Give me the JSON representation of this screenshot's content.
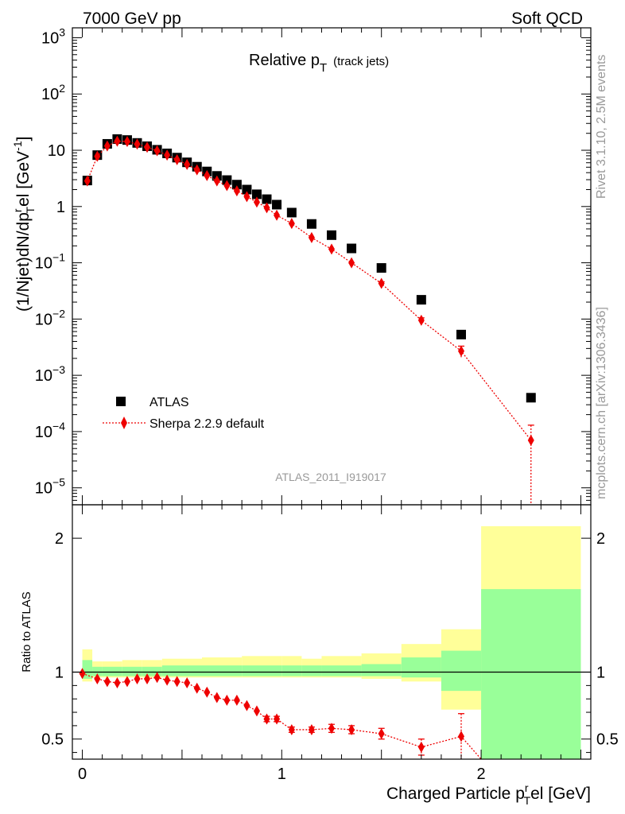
{
  "header": {
    "left": "7000 GeV pp",
    "right": "Soft QCD"
  },
  "side_labels": {
    "rivet": "Rivet 3.1.10,  2.5M events",
    "mcplots": "mcplots.cern.ch [arXiv:1306.3436]"
  },
  "chart_data": [
    {
      "type": "scatter",
      "panel": "main",
      "title_main": "Relative p",
      "title_sub": "T",
      "title_extra": "(track jets)",
      "ylabel": "(1/Njet)dN/dp",
      "ylabel_sup": "r",
      "ylabel_sub": "T",
      "ylabel_tail": "el [GeV",
      "ylabel_unit_sup": "-1",
      "ylabel_close": "]",
      "yscale": "log",
      "ylim": [
        5e-06,
        1500
      ],
      "xlim": [
        -0.05,
        2.55
      ],
      "ytick_labels": [
        {
          "base": "10",
          "exp": "3",
          "value": 1000
        },
        {
          "base": "10",
          "exp": "2",
          "value": 100
        },
        {
          "base": "10",
          "exp": "",
          "value": 10
        },
        {
          "base": "1",
          "exp": "",
          "value": 1
        },
        {
          "base": "10",
          "exp": "−1",
          "value": 0.1
        },
        {
          "base": "10",
          "exp": "−2",
          "value": 0.01
        },
        {
          "base": "10",
          "exp": "−3",
          "value": 0.001
        },
        {
          "base": "10",
          "exp": "−4",
          "value": 0.0001
        },
        {
          "base": "10",
          "exp": "−5",
          "value": 1e-05
        }
      ],
      "watermark": "ATLAS_2011_I919017",
      "legend_position": "lower-left",
      "series": [
        {
          "name": "ATLAS",
          "marker": "square",
          "color": "#000000",
          "x": [
            0.025,
            0.075,
            0.125,
            0.175,
            0.225,
            0.275,
            0.325,
            0.375,
            0.425,
            0.475,
            0.525,
            0.575,
            0.625,
            0.675,
            0.725,
            0.775,
            0.825,
            0.875,
            0.925,
            0.975,
            1.05,
            1.15,
            1.25,
            1.35,
            1.5,
            1.7,
            1.9,
            2.25
          ],
          "y": [
            2.9,
            8.2,
            13.0,
            15.8,
            15.2,
            13.5,
            11.8,
            10.2,
            8.8,
            7.4,
            6.1,
            5.1,
            4.2,
            3.5,
            2.95,
            2.45,
            2.0,
            1.65,
            1.35,
            1.08,
            0.78,
            0.49,
            0.31,
            0.18,
            0.081,
            0.022,
            0.0053,
            0.0004
          ]
        },
        {
          "name": "Sherpa 2.2.9 default",
          "marker": "diamond",
          "line": "dotted",
          "color": "#ee0000",
          "x": [
            0.025,
            0.075,
            0.125,
            0.175,
            0.225,
            0.275,
            0.325,
            0.375,
            0.425,
            0.475,
            0.525,
            0.575,
            0.625,
            0.675,
            0.725,
            0.775,
            0.825,
            0.875,
            0.925,
            0.975,
            1.05,
            1.15,
            1.25,
            1.35,
            1.5,
            1.7,
            1.9,
            2.25
          ],
          "y": [
            2.85,
            7.8,
            11.9,
            14.5,
            14.3,
            12.9,
            11.3,
            9.8,
            8.2,
            6.8,
            5.6,
            4.5,
            3.55,
            2.85,
            2.35,
            1.9,
            1.5,
            1.2,
            0.95,
            0.7,
            0.5,
            0.28,
            0.175,
            0.1,
            0.043,
            0.0095,
            0.0027,
            7e-05
          ],
          "yerr_lo": [
            0,
            0,
            0,
            0,
            0,
            0,
            0,
            0,
            0,
            0,
            0,
            0,
            0,
            0,
            0,
            0,
            0,
            0,
            0,
            0,
            0,
            0,
            0,
            0,
            0.003,
            0.001,
            0.0006,
            7e-05
          ],
          "yerr_hi": [
            0,
            0,
            0,
            0,
            0,
            0,
            0,
            0,
            0,
            0,
            0,
            0,
            0,
            0,
            0,
            0,
            0,
            0,
            0,
            0,
            0,
            0,
            0,
            0,
            0.003,
            0.001,
            0.0006,
            6e-05
          ]
        }
      ]
    },
    {
      "type": "scatter",
      "panel": "ratio",
      "ylabel": "Ratio to ATLAS",
      "xlabel_main": "Charged Particle p",
      "xlabel_sup": "r",
      "xlabel_sub": "T",
      "xlabel_tail": "el [GeV]",
      "xlim": [
        -0.05,
        2.55
      ],
      "ylim": [
        0.35,
        2.25
      ],
      "xtick_labels": [
        "0",
        "1",
        "2"
      ],
      "ytick_labels": [
        "0.5",
        "1",
        "2"
      ],
      "reference_line": 1,
      "uncertainty_bands": {
        "inner_color": "#99ff99",
        "outer_color": "#ffff99",
        "bins": [
          {
            "x0": 0.0,
            "x1": 0.05,
            "in_lo": 0.95,
            "in_hi": 1.09,
            "out_lo": 0.93,
            "out_hi": 1.17
          },
          {
            "x0": 0.05,
            "x1": 0.1,
            "in_lo": 0.97,
            "in_hi": 1.04,
            "out_lo": 0.96,
            "out_hi": 1.08
          },
          {
            "x0": 0.1,
            "x1": 0.2,
            "in_lo": 0.97,
            "in_hi": 1.04,
            "out_lo": 0.96,
            "out_hi": 1.08
          },
          {
            "x0": 0.2,
            "x1": 0.3,
            "in_lo": 0.97,
            "in_hi": 1.04,
            "out_lo": 0.96,
            "out_hi": 1.09
          },
          {
            "x0": 0.3,
            "x1": 0.4,
            "in_lo": 0.97,
            "in_hi": 1.04,
            "out_lo": 0.96,
            "out_hi": 1.09
          },
          {
            "x0": 0.4,
            "x1": 0.6,
            "in_lo": 0.97,
            "in_hi": 1.05,
            "out_lo": 0.96,
            "out_hi": 1.1
          },
          {
            "x0": 0.6,
            "x1": 0.8,
            "in_lo": 0.97,
            "in_hi": 1.05,
            "out_lo": 0.96,
            "out_hi": 1.11
          },
          {
            "x0": 0.8,
            "x1": 1.0,
            "in_lo": 0.97,
            "in_hi": 1.05,
            "out_lo": 0.96,
            "out_hi": 1.12
          },
          {
            "x0": 1.0,
            "x1": 1.1,
            "in_lo": 0.97,
            "in_hi": 1.05,
            "out_lo": 0.96,
            "out_hi": 1.12
          },
          {
            "x0": 1.1,
            "x1": 1.2,
            "in_lo": 0.97,
            "in_hi": 1.05,
            "out_lo": 0.96,
            "out_hi": 1.1
          },
          {
            "x0": 1.2,
            "x1": 1.4,
            "in_lo": 0.97,
            "in_hi": 1.05,
            "out_lo": 0.96,
            "out_hi": 1.12
          },
          {
            "x0": 1.4,
            "x1": 1.6,
            "in_lo": 0.97,
            "in_hi": 1.06,
            "out_lo": 0.95,
            "out_hi": 1.14
          },
          {
            "x0": 1.6,
            "x1": 1.8,
            "in_lo": 0.96,
            "in_hi": 1.11,
            "out_lo": 0.93,
            "out_hi": 1.21
          },
          {
            "x0": 1.8,
            "x1": 2.0,
            "in_lo": 0.86,
            "in_hi": 1.16,
            "out_lo": 0.72,
            "out_hi": 1.32
          },
          {
            "x0": 2.0,
            "x1": 2.5,
            "in_lo": 0.35,
            "in_hi": 1.62,
            "out_lo": 0.35,
            "out_hi": 2.09
          }
        ]
      },
      "series": [
        {
          "name": "Sherpa 2.2.9 default",
          "marker": "diamond",
          "color": "#ee0000",
          "x": [
            0.0,
            0.075,
            0.125,
            0.175,
            0.225,
            0.275,
            0.325,
            0.375,
            0.425,
            0.475,
            0.525,
            0.575,
            0.625,
            0.675,
            0.725,
            0.775,
            0.825,
            0.875,
            0.925,
            0.975,
            1.05,
            1.15,
            1.25,
            1.35,
            1.5,
            1.7,
            1.9
          ],
          "y": [
            0.99,
            0.95,
            0.93,
            0.92,
            0.93,
            0.95,
            0.95,
            0.96,
            0.94,
            0.93,
            0.92,
            0.88,
            0.85,
            0.81,
            0.79,
            0.79,
            0.75,
            0.71,
            0.65,
            0.65,
            0.57,
            0.57,
            0.58,
            0.57,
            0.54,
            0.44,
            0.52
          ],
          "yerr": [
            0,
            0,
            0,
            0,
            0,
            0,
            0,
            0,
            0,
            0,
            0,
            0,
            0,
            0,
            0,
            0,
            0,
            0,
            0.02,
            0.02,
            0.02,
            0.02,
            0.03,
            0.03,
            0.04,
            0.06,
            0.17
          ]
        }
      ]
    }
  ],
  "legend": [
    {
      "label": "ATLAS",
      "marker": "square",
      "color": "#000000"
    },
    {
      "label": "Sherpa 2.2.9 default",
      "marker": "diamond",
      "color": "#ee0000"
    }
  ]
}
